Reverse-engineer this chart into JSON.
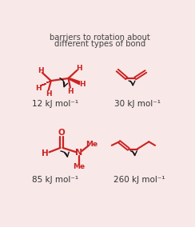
{
  "bg_color": "#f8e8e8",
  "red_color": "#cc2222",
  "dark_color": "#111111",
  "title_line1": "barriers to rotation about",
  "title_line2": "different types of bond",
  "label_12": "12 kJ mol⁻¹",
  "label_30": "30 kJ mol⁻¹",
  "label_85": "85 kJ mol⁻¹",
  "label_260": "260 kJ mol⁻¹",
  "title_fontsize": 7.2,
  "label_fontsize": 7.5
}
